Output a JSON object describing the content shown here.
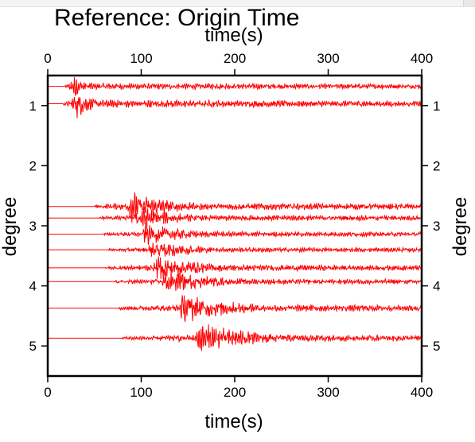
{
  "chart_data": {
    "type": "line",
    "title": "Reference: Origin Time",
    "xlabel_top": "time(s)",
    "xlabel_bottom": "time(s)",
    "ylabel_left": "degree",
    "ylabel_right": "degree",
    "xlim": [
      0,
      400
    ],
    "ylim": [
      5.5,
      0.5
    ],
    "y_inverted": true,
    "x_ticks": [
      0,
      100,
      200,
      300,
      400
    ],
    "y_ticks": [
      1,
      2,
      3,
      4,
      5
    ],
    "grid": false,
    "line_color": "#ff0000",
    "traces": [
      {
        "distance": 0.68,
        "onset": 18,
        "peak": 28,
        "amp": 0.85,
        "decay": 12,
        "coda": 0.1
      },
      {
        "distance": 0.97,
        "onset": 17,
        "peak": 30,
        "amp": 1.0,
        "decay": 14,
        "coda": 0.12
      },
      {
        "distance": 2.68,
        "onset": 50,
        "peak": 90,
        "amp": 1.0,
        "decay": 40,
        "coda": 0.12
      },
      {
        "distance": 2.87,
        "onset": 55,
        "peak": 97,
        "amp": 0.8,
        "decay": 38,
        "coda": 0.12
      },
      {
        "distance": 3.14,
        "onset": 60,
        "peak": 105,
        "amp": 0.75,
        "decay": 40,
        "coda": 0.12
      },
      {
        "distance": 3.4,
        "onset": 65,
        "peak": 112,
        "amp": 0.7,
        "decay": 42,
        "coda": 0.12
      },
      {
        "distance": 3.7,
        "onset": 62,
        "peak": 118,
        "amp": 0.9,
        "decay": 44,
        "coda": 0.12
      },
      {
        "distance": 3.93,
        "onset": 72,
        "peak": 127,
        "amp": 0.8,
        "decay": 48,
        "coda": 0.12
      },
      {
        "distance": 4.37,
        "onset": 75,
        "peak": 145,
        "amp": 1.0,
        "decay": 52,
        "coda": 0.12
      },
      {
        "distance": 4.87,
        "onset": 80,
        "peak": 163,
        "amp": 1.0,
        "decay": 58,
        "coda": 0.12
      }
    ]
  }
}
